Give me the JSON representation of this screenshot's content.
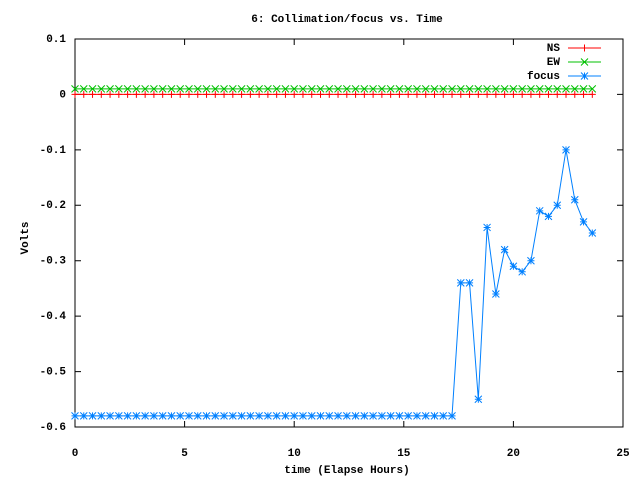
{
  "chart_data": {
    "type": "line",
    "title": "6: Collimation/focus vs. Time",
    "x_label": "time (Elapse Hours)",
    "y_label": "Volts",
    "x": [
      0,
      0.4,
      0.8,
      1.2,
      1.6,
      2,
      2.4,
      2.8,
      3.2,
      3.6,
      4,
      4.4,
      4.8,
      5.2,
      5.6,
      6,
      6.4,
      6.8,
      7.2,
      7.6,
      8,
      8.4,
      8.8,
      9.2,
      9.6,
      10,
      10.4,
      10.8,
      11.2,
      11.6,
      12,
      12.4,
      12.8,
      13.2,
      13.6,
      14,
      14.4,
      14.8,
      15.2,
      15.6,
      16,
      16.4,
      16.8,
      17.2,
      17.6,
      18,
      18.4,
      18.8,
      19.2,
      19.6,
      20,
      20.4,
      20.8,
      21.2,
      21.6,
      22,
      22.4,
      22.8,
      23.2,
      23.6
    ],
    "series": [
      {
        "name": "NS",
        "color": "#ff0000",
        "marker": "plus",
        "values": [
          0,
          0,
          0,
          0,
          0,
          0,
          0,
          0,
          0,
          0,
          0,
          0,
          0,
          0,
          0,
          0,
          0,
          0,
          0,
          0,
          0,
          0,
          0,
          0,
          0,
          0,
          0,
          0,
          0,
          0,
          0,
          0,
          0,
          0,
          0,
          0,
          0,
          0,
          0,
          0,
          0,
          0,
          0,
          0,
          0,
          0,
          0,
          0,
          0,
          0,
          0,
          0,
          0,
          0,
          0,
          0,
          0,
          0,
          0,
          0
        ]
      },
      {
        "name": "EW",
        "color": "#00c000",
        "marker": "cross",
        "values": [
          0.01,
          0.01,
          0.01,
          0.01,
          0.01,
          0.01,
          0.01,
          0.01,
          0.01,
          0.01,
          0.01,
          0.01,
          0.01,
          0.01,
          0.01,
          0.01,
          0.01,
          0.01,
          0.01,
          0.01,
          0.01,
          0.01,
          0.01,
          0.01,
          0.01,
          0.01,
          0.01,
          0.01,
          0.01,
          0.01,
          0.01,
          0.01,
          0.01,
          0.01,
          0.01,
          0.01,
          0.01,
          0.01,
          0.01,
          0.01,
          0.01,
          0.01,
          0.01,
          0.01,
          0.01,
          0.01,
          0.01,
          0.01,
          0.01,
          0.01,
          0.01,
          0.01,
          0.01,
          0.01,
          0.01,
          0.01,
          0.01,
          0.01,
          0.01,
          0.01
        ]
      },
      {
        "name": "focus",
        "color": "#0080ff",
        "marker": "star",
        "values": [
          -0.58,
          -0.58,
          -0.58,
          -0.58,
          -0.58,
          -0.58,
          -0.58,
          -0.58,
          -0.58,
          -0.58,
          -0.58,
          -0.58,
          -0.58,
          -0.58,
          -0.58,
          -0.58,
          -0.58,
          -0.58,
          -0.58,
          -0.58,
          -0.58,
          -0.58,
          -0.58,
          -0.58,
          -0.58,
          -0.58,
          -0.58,
          -0.58,
          -0.58,
          -0.58,
          -0.58,
          -0.58,
          -0.58,
          -0.58,
          -0.58,
          -0.58,
          -0.58,
          -0.58,
          -0.58,
          -0.58,
          -0.58,
          -0.58,
          -0.58,
          -0.58,
          -0.34,
          -0.34,
          -0.55,
          -0.24,
          -0.36,
          -0.28,
          -0.31,
          -0.32,
          -0.3,
          -0.21,
          -0.22,
          -0.2,
          -0.1,
          -0.19,
          -0.23,
          -0.25
        ]
      }
    ],
    "xlim": [
      0,
      25
    ],
    "xticks": [
      0,
      5,
      10,
      15,
      20,
      25
    ],
    "ylim": [
      -0.6,
      0.1
    ],
    "yticks": [
      0.1,
      0,
      -0.1,
      -0.2,
      -0.3,
      -0.4,
      -0.5,
      -0.6
    ],
    "grid": false,
    "legend": "top-right"
  }
}
